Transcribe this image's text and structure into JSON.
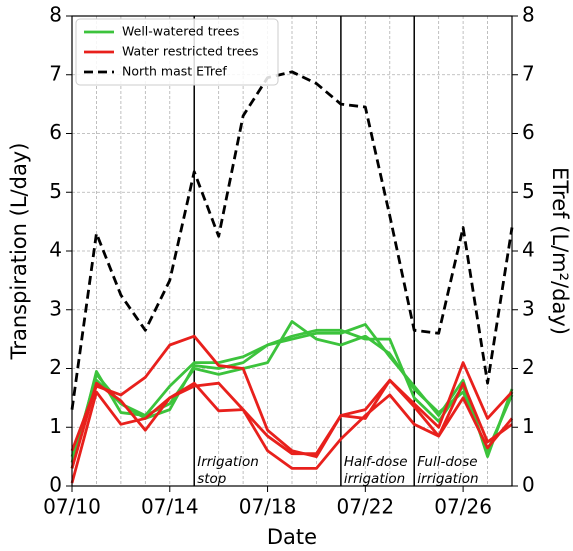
{
  "chart_data": {
    "type": "line",
    "x": [
      10,
      11,
      12,
      13,
      14,
      15,
      16,
      17,
      18,
      19,
      20,
      21,
      22,
      23,
      24,
      25,
      26,
      27,
      28
    ],
    "xlim": [
      10,
      28
    ],
    "xticks": [
      {
        "value": 10,
        "label": "07/10"
      },
      {
        "value": 14,
        "label": "07/14"
      },
      {
        "value": 18,
        "label": "07/18"
      },
      {
        "value": 22,
        "label": "07/22"
      },
      {
        "value": 26,
        "label": "07/26"
      }
    ],
    "ylim": [
      0,
      8
    ],
    "yticks": [
      0,
      1,
      2,
      3,
      4,
      5,
      6,
      7,
      8
    ],
    "y2lim": [
      0,
      8
    ],
    "y2ticks": [
      0,
      1,
      2,
      3,
      4,
      5,
      6,
      7,
      8
    ],
    "xlabel": "Date",
    "ylabel": "Transpiration (L/day)",
    "y2label": "ETref (L/m²/day)",
    "grid": true,
    "legend": "upper left",
    "series": [
      {
        "name": "Well-watered trees",
        "color": "#3cc33c",
        "style": "solid",
        "lines": [
          [
            0.3,
            1.95,
            1.25,
            1.2,
            1.7,
            2.1,
            2.1,
            2.2,
            2.4,
            2.5,
            2.6,
            2.6,
            2.75,
            2.2,
            1.7,
            1.2,
            1.8,
            0.5,
            1.65
          ],
          [
            0.4,
            1.9,
            1.4,
            1.2,
            1.4,
            2.0,
            1.9,
            2.0,
            2.1,
            2.8,
            2.5,
            2.4,
            2.55,
            2.25,
            1.65,
            1.25,
            1.6,
            0.6,
            1.55
          ],
          [
            0.5,
            1.8,
            1.4,
            1.15,
            1.3,
            2.05,
            2.0,
            2.1,
            2.4,
            2.55,
            2.65,
            2.65,
            2.5,
            2.5,
            1.5,
            1.1,
            1.7,
            0.55,
            1.6
          ]
        ]
      },
      {
        "name": "Water restricted trees",
        "color": "#e8201c",
        "style": "solid",
        "lines": [
          [
            0.6,
            1.7,
            1.55,
            1.85,
            2.4,
            2.55,
            2.05,
            2.0,
            0.95,
            0.6,
            0.5,
            1.2,
            1.3,
            1.8,
            1.4,
            1.0,
            2.1,
            1.15,
            1.6
          ],
          [
            0.05,
            1.6,
            1.05,
            1.15,
            1.5,
            1.75,
            1.28,
            1.3,
            0.85,
            0.55,
            0.55,
            1.2,
            1.15,
            1.8,
            1.35,
            0.85,
            1.75,
            0.75,
            1.05
          ],
          [
            0.3,
            1.75,
            1.45,
            0.95,
            1.5,
            1.7,
            1.75,
            1.3,
            0.6,
            0.3,
            0.3,
            0.8,
            1.2,
            1.55,
            1.05,
            0.85,
            1.5,
            0.65,
            1.15
          ]
        ]
      },
      {
        "name": "North mast ETref",
        "color": "#000000",
        "style": "dashed",
        "axis": "y2",
        "lines": [
          [
            1.3,
            4.3,
            3.25,
            2.65,
            3.5,
            5.35,
            4.25,
            6.3,
            6.95,
            7.05,
            6.85,
            6.5,
            6.45,
            4.6,
            2.65,
            2.6,
            4.4,
            1.75,
            4.4
          ]
        ]
      }
    ],
    "events": [
      {
        "x": 15,
        "text": [
          "Irrigation",
          "stop"
        ]
      },
      {
        "x": 21,
        "text": [
          "Half-dose",
          "irrigation"
        ]
      },
      {
        "x": 24,
        "text": [
          "Full-dose",
          "irrigation"
        ]
      }
    ]
  }
}
